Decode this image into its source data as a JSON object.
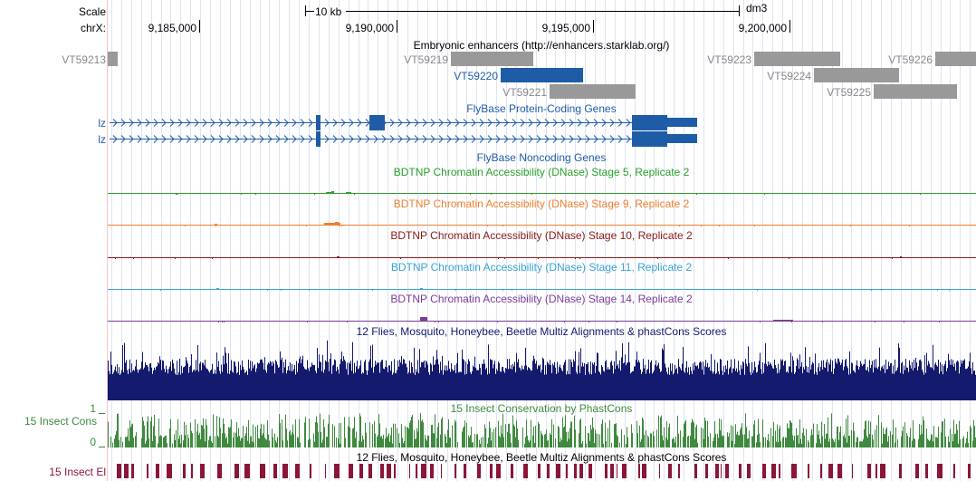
{
  "ruler": {
    "scale_label": "Scale",
    "scale_bar_text": "10 kb",
    "assembly": "dm3",
    "chrom_label": "chrX:",
    "positions": [
      "9,185,000",
      "9,190,000",
      "9,195,000",
      "9,200,000"
    ]
  },
  "enhancers": {
    "title": "Embryonic enhancers (http://enhancers.starklab.org/)",
    "items": [
      "VT59213",
      "VT59219",
      "VT59220",
      "VT59221",
      "VT59223",
      "VT59224",
      "VT59225",
      "VT59226"
    ]
  },
  "genes": {
    "protein_coding_title": "FlyBase Protein-Coding Genes",
    "noncoding_title": "FlyBase Noncoding Genes",
    "transcripts": [
      "lz",
      "lz"
    ]
  },
  "dnase_tracks": [
    {
      "title": "BDTNP Chromatin Accessibility (DNase) Stage 5, Replicate 2",
      "color": "#2ca02c"
    },
    {
      "title": "BDTNP Chromatin Accessibility (DNase) Stage 9, Replicate 2",
      "color": "#ee7f2d"
    },
    {
      "title": "BDTNP Chromatin Accessibility (DNase) Stage 10, Replicate 2",
      "color": "#8b1a1a"
    },
    {
      "title": "BDTNP Chromatin Accessibility (DNase) Stage 11, Replicate 2",
      "color": "#3aa3d6"
    },
    {
      "title": "BDTNP Chromatin Accessibility (DNase) Stage 14, Replicate 2",
      "color": "#7d3c98"
    }
  ],
  "multiz": {
    "title": "12 Flies, Mosquito, Honeybee, Beetle Multiz Alignments & phastCons Scores",
    "color": "#141a6e"
  },
  "cons": {
    "title": "15 Insect Conservation by PhastCons",
    "side_label": "15 Insect Cons",
    "ymax": "1",
    "ymin": "0",
    "color": "#3f8a3f"
  },
  "elements": {
    "title": "12 Flies, Mosquito, Honeybee, Beetle Multiz Alignments & phastCons Scores",
    "side_label": "15 Insect El",
    "color": "#8b1538"
  }
}
